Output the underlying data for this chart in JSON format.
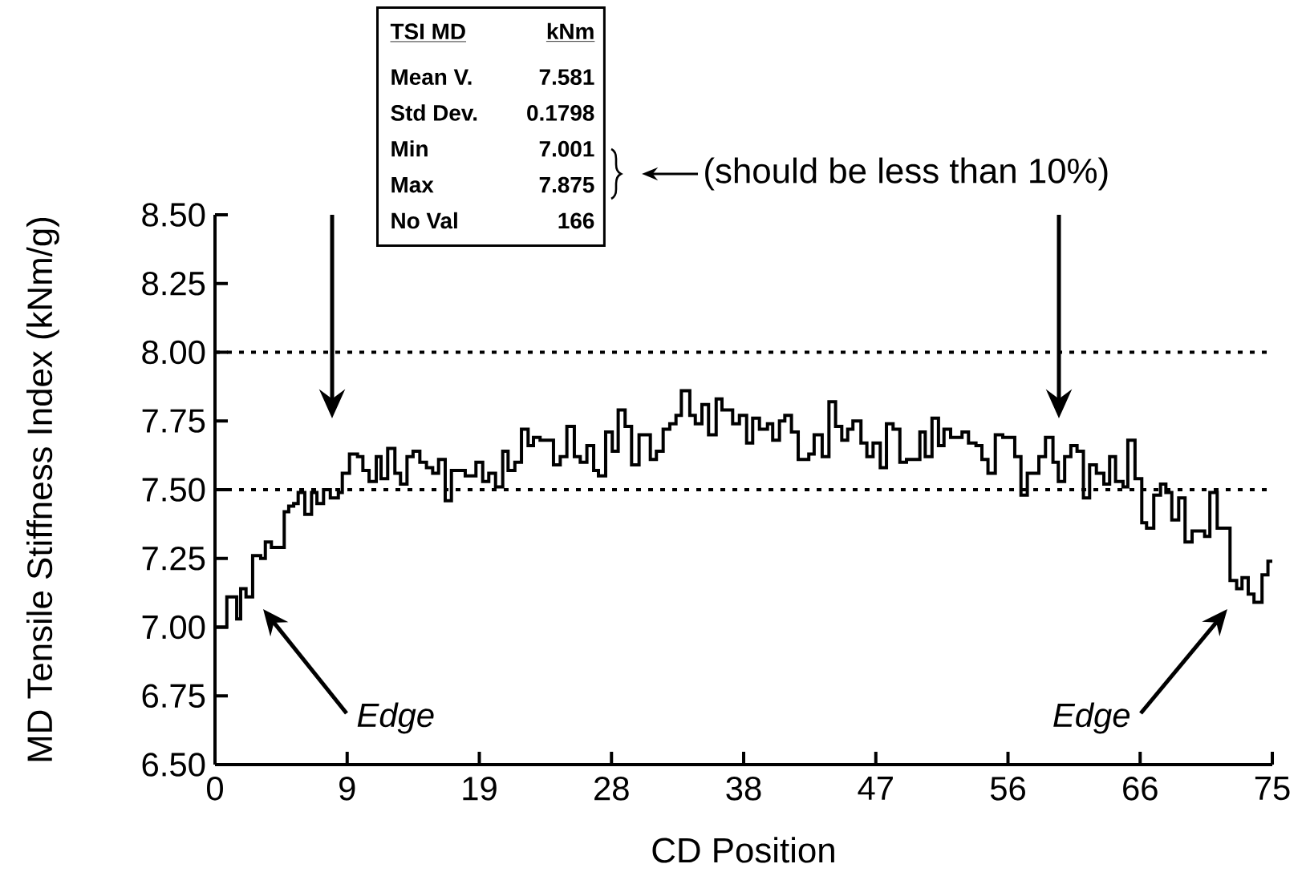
{
  "chart_data": {
    "type": "step",
    "xlabel": "CD Position",
    "ylabel": "MD Tensile Stiffness Index (kNm/g)",
    "color": "#000000",
    "x": [
      0,
      0.84,
      1.54,
      1.82,
      2.2,
      2.67,
      3.24,
      3.57,
      4.0,
      4.91,
      5.23,
      5.58,
      5.9,
      6.37,
      6.85,
      7.23,
      7.7,
      8.18,
      8.75,
      9.03,
      9.54,
      10.11,
      10.49,
      10.93,
      11.44,
      11.78,
      12.25,
      12.76,
      13.16,
      13.62,
      14.05,
      14.53,
      15.0,
      15.44,
      15.86,
      16.33,
      16.77,
      17.47,
      17.75,
      18.51,
      18.99,
      19.42,
      19.9,
      20.41,
      20.79,
      21.27,
      21.74,
      22.21,
      22.59,
      23.06,
      24.01,
      24.49,
      24.96,
      25.49,
      25.91,
      26.38,
      26.86,
      27.2,
      27.71,
      28.18,
      28.6,
      29.09,
      29.55,
      30.08,
      30.88,
      31.31,
      31.79,
      32.26,
      32.7,
      33.08,
      33.68,
      34.07,
      34.54,
      35.01,
      35.55,
      35.96,
      36.72,
      37.2,
      37.71,
      38.14,
      38.62,
      39.19,
      39.56,
      40.04,
      40.42,
      40.89,
      41.37,
      42.12,
      42.5,
      43.07,
      43.55,
      44.02,
      44.46,
      44.88,
      45.25,
      45.82,
      46.24,
      46.68,
      47.19,
      47.63,
      48.1,
      48.58,
      49.05,
      50.0,
      50.38,
      50.86,
      51.32,
      51.71,
      52.18,
      52.99,
      53.45,
      53.98,
      54.4,
      54.83,
      55.35,
      55.88,
      56.73,
      57.17,
      57.62,
      58.44,
      58.91,
      59.44,
      59.82,
      60.27,
      60.71,
      61.15,
      61.6,
      62.04,
      62.52,
      63.05,
      63.46,
      63.88,
      64.41,
      64.75,
      65.26,
      65.74,
      66.08,
      66.59,
      67.07,
      67.45,
      67.87,
      68.36,
      68.81,
      69.31,
      70.2,
      70.57,
      71.09,
      72.0,
      72.47,
      72.85,
      73.29,
      73.7,
      74.27,
      74.69,
      75
    ],
    "values": [
      7.0,
      7.11,
      7.03,
      7.14,
      7.11,
      7.26,
      7.25,
      7.31,
      7.29,
      7.42,
      7.44,
      7.45,
      7.49,
      7.41,
      7.49,
      7.45,
      7.5,
      7.47,
      7.49,
      7.56,
      7.63,
      7.62,
      7.57,
      7.53,
      7.62,
      7.54,
      7.65,
      7.56,
      7.52,
      7.62,
      7.64,
      7.6,
      7.58,
      7.56,
      7.61,
      7.46,
      7.57,
      7.57,
      7.55,
      7.6,
      7.53,
      7.56,
      7.51,
      7.64,
      7.57,
      7.6,
      7.72,
      7.66,
      7.69,
      7.68,
      7.59,
      7.62,
      7.73,
      7.62,
      7.6,
      7.66,
      7.57,
      7.55,
      7.71,
      7.64,
      7.79,
      7.73,
      7.59,
      7.7,
      7.61,
      7.64,
      7.72,
      7.74,
      7.77,
      7.86,
      7.77,
      7.74,
      7.81,
      7.7,
      7.83,
      7.79,
      7.74,
      7.77,
      7.67,
      7.76,
      7.72,
      7.74,
      7.68,
      7.75,
      7.77,
      7.71,
      7.61,
      7.63,
      7.7,
      7.62,
      7.82,
      7.73,
      7.68,
      7.72,
      7.75,
      7.67,
      7.62,
      7.67,
      7.58,
      7.74,
      7.72,
      7.6,
      7.61,
      7.71,
      7.62,
      7.76,
      7.66,
      7.72,
      7.69,
      7.71,
      7.67,
      7.66,
      7.61,
      7.56,
      7.7,
      7.69,
      7.62,
      7.48,
      7.56,
      7.62,
      7.69,
      7.6,
      7.53,
      7.62,
      7.66,
      7.64,
      7.47,
      7.59,
      7.56,
      7.52,
      7.62,
      7.53,
      7.51,
      7.68,
      7.54,
      7.38,
      7.36,
      7.48,
      7.52,
      7.49,
      7.39,
      7.47,
      7.31,
      7.35,
      7.33,
      7.49,
      7.36,
      7.17,
      7.14,
      7.18,
      7.12,
      7.09,
      7.19,
      7.24,
      7.24
    ],
    "xlim": [
      0,
      75
    ],
    "ylim": [
      6.5,
      8.5
    ],
    "xticks": [
      0,
      {
        "value": 9.375,
        "label": "9"
      },
      {
        "value": 18.75,
        "label": "19"
      },
      {
        "value": 28.125,
        "label": "28"
      },
      {
        "value": 37.5,
        "label": "38"
      },
      {
        "value": 46.875,
        "label": "47"
      },
      {
        "value": 56.25,
        "label": "56"
      },
      {
        "value": 65.625,
        "label": "66"
      },
      75
    ],
    "yticks": [
      {
        "value": 6.5,
        "label": "6.50"
      },
      {
        "value": 6.75,
        "label": "6.75"
      },
      {
        "value": 7.0,
        "label": "7.00"
      },
      {
        "value": 7.25,
        "label": "7.25"
      },
      {
        "value": 7.5,
        "label": "7.50"
      },
      {
        "value": 7.75,
        "label": "7.75"
      },
      {
        "value": 8.0,
        "label": "8.00"
      },
      {
        "value": 8.25,
        "label": "8.25"
      },
      {
        "value": 8.5,
        "label": "8.50"
      }
    ],
    "ref_lines": [
      {
        "axis": "y",
        "value": 8.0,
        "label": null,
        "line_style": "dotted"
      },
      {
        "axis": "y",
        "value": 7.5,
        "label": null,
        "line_style": "dotted"
      }
    ],
    "annotations": [
      "TSI MD",
      "kNm",
      "Mean V.",
      "7.581",
      "Std Dev.",
      "0.1798",
      "Min",
      "7.001",
      "Max",
      "7.875",
      "No Val",
      "166",
      "(should be less than 10%)",
      "Edge",
      "Edge"
    ],
    "grid": false,
    "line_style": "solid"
  }
}
